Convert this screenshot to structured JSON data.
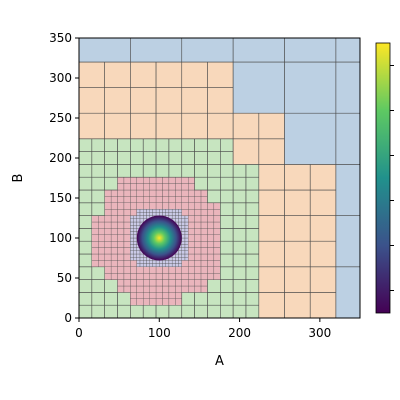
{
  "chart_data": {
    "type": "heatmap",
    "xlabel": "A",
    "ylabel": "B",
    "xlim": [
      0,
      350
    ],
    "ylim": [
      0,
      350
    ],
    "x_ticks": [
      "0",
      "100",
      "200",
      "300"
    ],
    "y_ticks": [
      "0",
      "50",
      "100",
      "150",
      "200",
      "250",
      "300",
      "350"
    ],
    "x_tick_values": [
      0,
      100,
      200,
      300
    ],
    "y_tick_values": [
      0,
      50,
      100,
      150,
      200,
      250,
      300,
      350
    ],
    "grid": "adaptive mesh refinement, finer cells toward center",
    "cell_colors": {
      "coarse": "#bcd0e3",
      "level_1": "#f8d8bb",
      "level_2": "#c7e5c0",
      "level_3": "#eab5bc",
      "level_4": "#c9c9e6"
    },
    "mesh_levels": [
      {
        "name": "coarse",
        "cell_size": 64,
        "radius": 9999
      },
      {
        "name": "level_1",
        "cell_size": 32,
        "radius": 175
      },
      {
        "name": "level_2",
        "cell_size": 16,
        "radius": 115
      },
      {
        "name": "level_3",
        "cell_size": 8,
        "radius": 72
      },
      {
        "name": "level_4",
        "cell_size": 4,
        "radius": 36
      }
    ],
    "peak": {
      "x": 100,
      "y": 100,
      "radius": 28
    },
    "colorbar": {
      "colormap": "viridis",
      "colors": [
        "#440154",
        "#3b528b",
        "#21918c",
        "#5ec962",
        "#fde725"
      ],
      "tick_count": 6
    },
    "colors": {
      "axis": "#000000",
      "cell_edge": "#4a4a4a"
    }
  }
}
